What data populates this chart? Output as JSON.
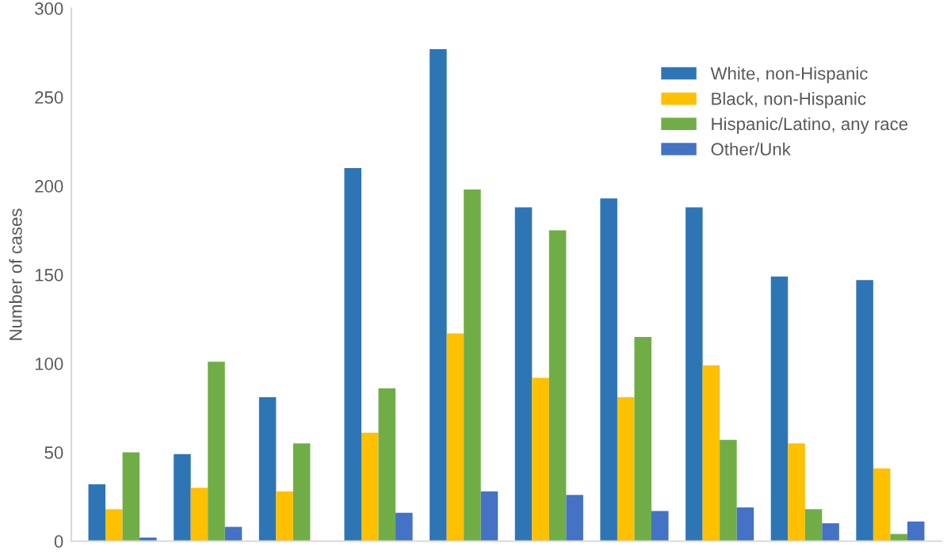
{
  "chart_data": {
    "type": "bar",
    "ylabel": "Number of cases",
    "categories": [
      null,
      null,
      null,
      null,
      null,
      null,
      null,
      null,
      null,
      null
    ],
    "series": [
      {
        "name": "White, non-Hispanic",
        "color": "#2e75b6",
        "values": [
          32,
          49,
          81,
          210,
          277,
          188,
          193,
          188,
          149,
          147
        ]
      },
      {
        "name": "Black, non-Hispanic",
        "color": "#ffc000",
        "values": [
          18,
          30,
          28,
          61,
          117,
          92,
          81,
          99,
          55,
          41
        ]
      },
      {
        "name": "Hispanic/Latino, any race",
        "color": "#70ad47",
        "values": [
          50,
          101,
          55,
          86,
          198,
          175,
          115,
          57,
          18,
          4
        ]
      },
      {
        "name": "Other/Unk",
        "color": "#4472c4",
        "values": [
          2,
          8,
          0,
          16,
          28,
          26,
          17,
          19,
          10,
          11
        ]
      }
    ],
    "ylim": [
      0,
      300
    ],
    "yticks": [
      0,
      50,
      100,
      150,
      200,
      250,
      300
    ],
    "grid": false,
    "legend": "top right",
    "tick_labels": "y"
  }
}
